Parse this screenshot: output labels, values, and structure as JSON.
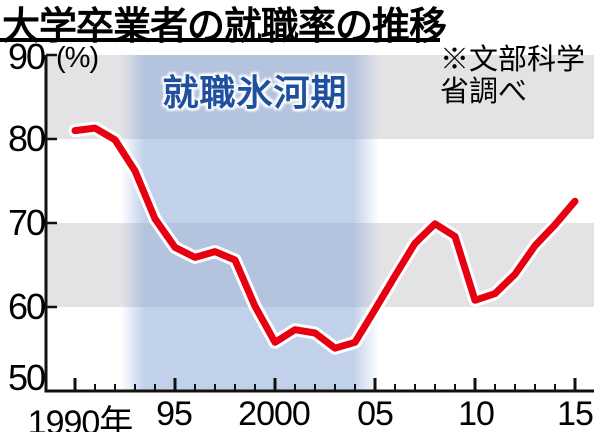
{
  "title": "大学卒業者の就職率の推移",
  "source_note": {
    "line1": "※文部科学",
    "line2": "省調べ"
  },
  "chart_data": {
    "type": "line",
    "title": "大学卒業者の就職率の推移",
    "unit_label": "(%)",
    "ylim": [
      50,
      90
    ],
    "yticks": [
      90,
      80,
      70,
      60,
      50
    ],
    "ytick_labels": [
      "90",
      "80",
      "70",
      "60",
      "50"
    ],
    "xticks": [
      {
        "year": 1990,
        "label": "1990年"
      },
      {
        "year": 1995,
        "label": "95"
      },
      {
        "year": 2000,
        "label": "2000"
      },
      {
        "year": 2005,
        "label": "05"
      },
      {
        "year": 2010,
        "label": "10"
      },
      {
        "year": 2015,
        "label": "15"
      }
    ],
    "series": [
      {
        "name": "大学卒業者の就職率",
        "color": "#e60012",
        "x": [
          1990,
          1991,
          1992,
          1993,
          1994,
          1995,
          1996,
          1997,
          1998,
          1999,
          2000,
          2001,
          2002,
          2003,
          2004,
          2005,
          2006,
          2007,
          2008,
          2009,
          2010,
          2011,
          2012,
          2013,
          2014,
          2015
        ],
        "values": [
          81.0,
          81.3,
          79.9,
          76.2,
          70.5,
          67.1,
          65.9,
          66.6,
          65.6,
          60.1,
          55.8,
          57.3,
          56.9,
          55.1,
          55.8,
          59.7,
          63.7,
          67.6,
          69.9,
          68.4,
          60.8,
          61.6,
          63.9,
          67.3,
          69.8,
          72.6
        ]
      }
    ],
    "annotation": {
      "text": "就職氷河期",
      "text_color": "#1f4f9f",
      "x_start": 1992.5,
      "x_end": 2005,
      "band_color": "rgba(134,163,214,0.5)"
    },
    "source": "※文部科学省調べ",
    "layout_hints": {
      "grid": "alternating horizontal gray stripes (90-80 and 70-60)",
      "stripe_color": "#e3e3e5",
      "legend": "none"
    }
  }
}
